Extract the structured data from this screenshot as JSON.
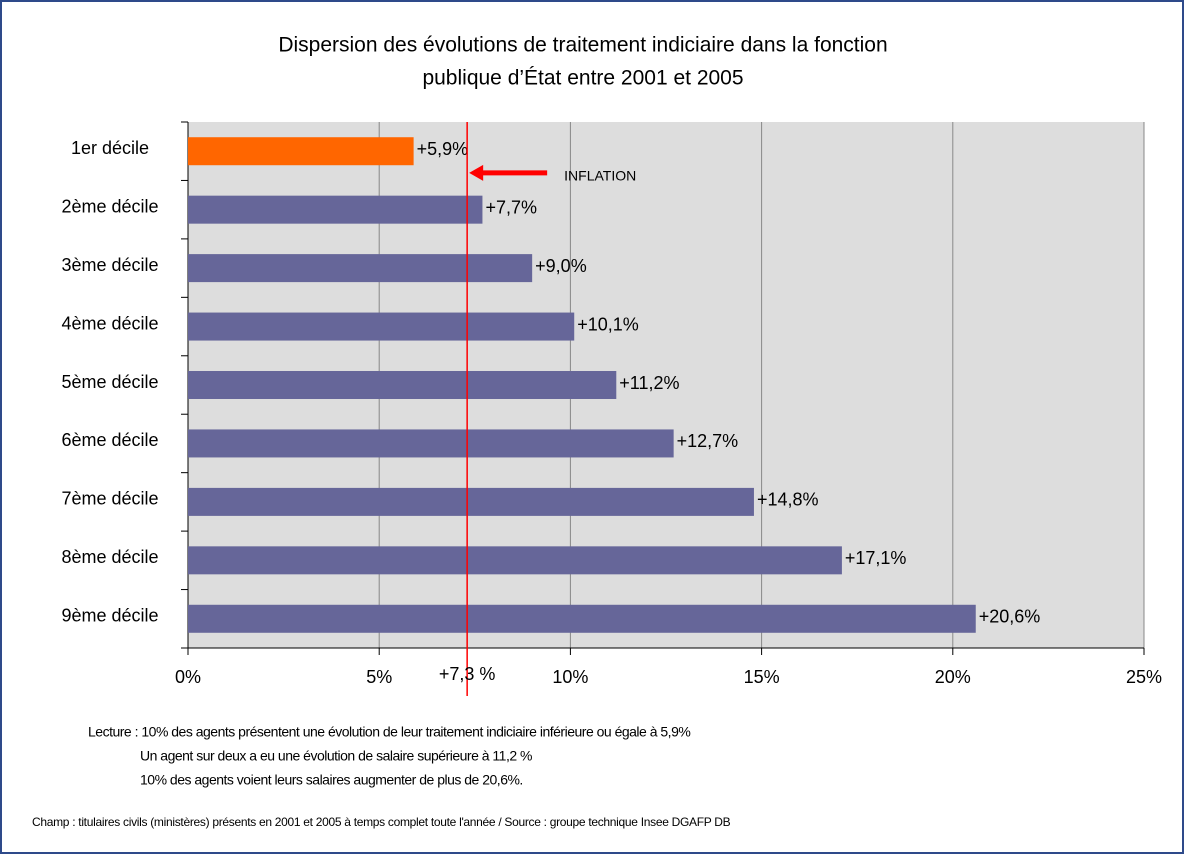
{
  "chart_data": {
    "type": "barh",
    "title": [
      "Dispersion des évolutions de traitement indiciaire dans la fonction",
      "publique d’État entre 2001 et 2005"
    ],
    "categories": [
      "1er décile",
      "2ème décile",
      "3ème décile",
      "4ème décile",
      "5ème décile",
      "6ème décile",
      "7ème décile",
      "8ème décile",
      "9ème décile"
    ],
    "values": [
      5.9,
      7.7,
      9.0,
      10.1,
      11.2,
      12.7,
      14.8,
      17.1,
      20.6
    ],
    "value_labels": [
      "+5,9%",
      "+7,7%",
      "+9,0%",
      "+10,1%",
      "+11,2%",
      "+12,7%",
      "+14,8%",
      "+17,1%",
      "+20,6%"
    ],
    "colors": [
      "#ff6600",
      "#666699",
      "#666699",
      "#666699",
      "#666699",
      "#666699",
      "#666699",
      "#666699",
      "#666699"
    ],
    "xlim": [
      0,
      25
    ],
    "xticks": [
      {
        "value": 0,
        "label": "0%"
      },
      {
        "value": 5,
        "label": "5%"
      },
      {
        "value": 10,
        "label": "10%"
      },
      {
        "value": 15,
        "label": "15%"
      },
      {
        "value": 20,
        "label": "20%"
      },
      {
        "value": 25,
        "label": "25%"
      }
    ],
    "grid": true,
    "reference_line": {
      "value": 7.3,
      "label": "+7,3 %",
      "annotation": "INFLATION",
      "color": "#ff0000"
    },
    "notes": [
      "Lecture :   10% des agents présentent une évolution de leur traitement indiciaire inférieure ou égale à 5,9%",
      "Un agent sur deux a eu une évolution de salaire supérieure à 11,2 %",
      "10% des agents voient leurs salaires augmenter de plus de 20,6%."
    ],
    "source": "Champ : titulaires civils (ministères) présents en 2001 et 2005 à temps complet toute l'année  / Source : groupe technique Insee DGAFP DB"
  }
}
